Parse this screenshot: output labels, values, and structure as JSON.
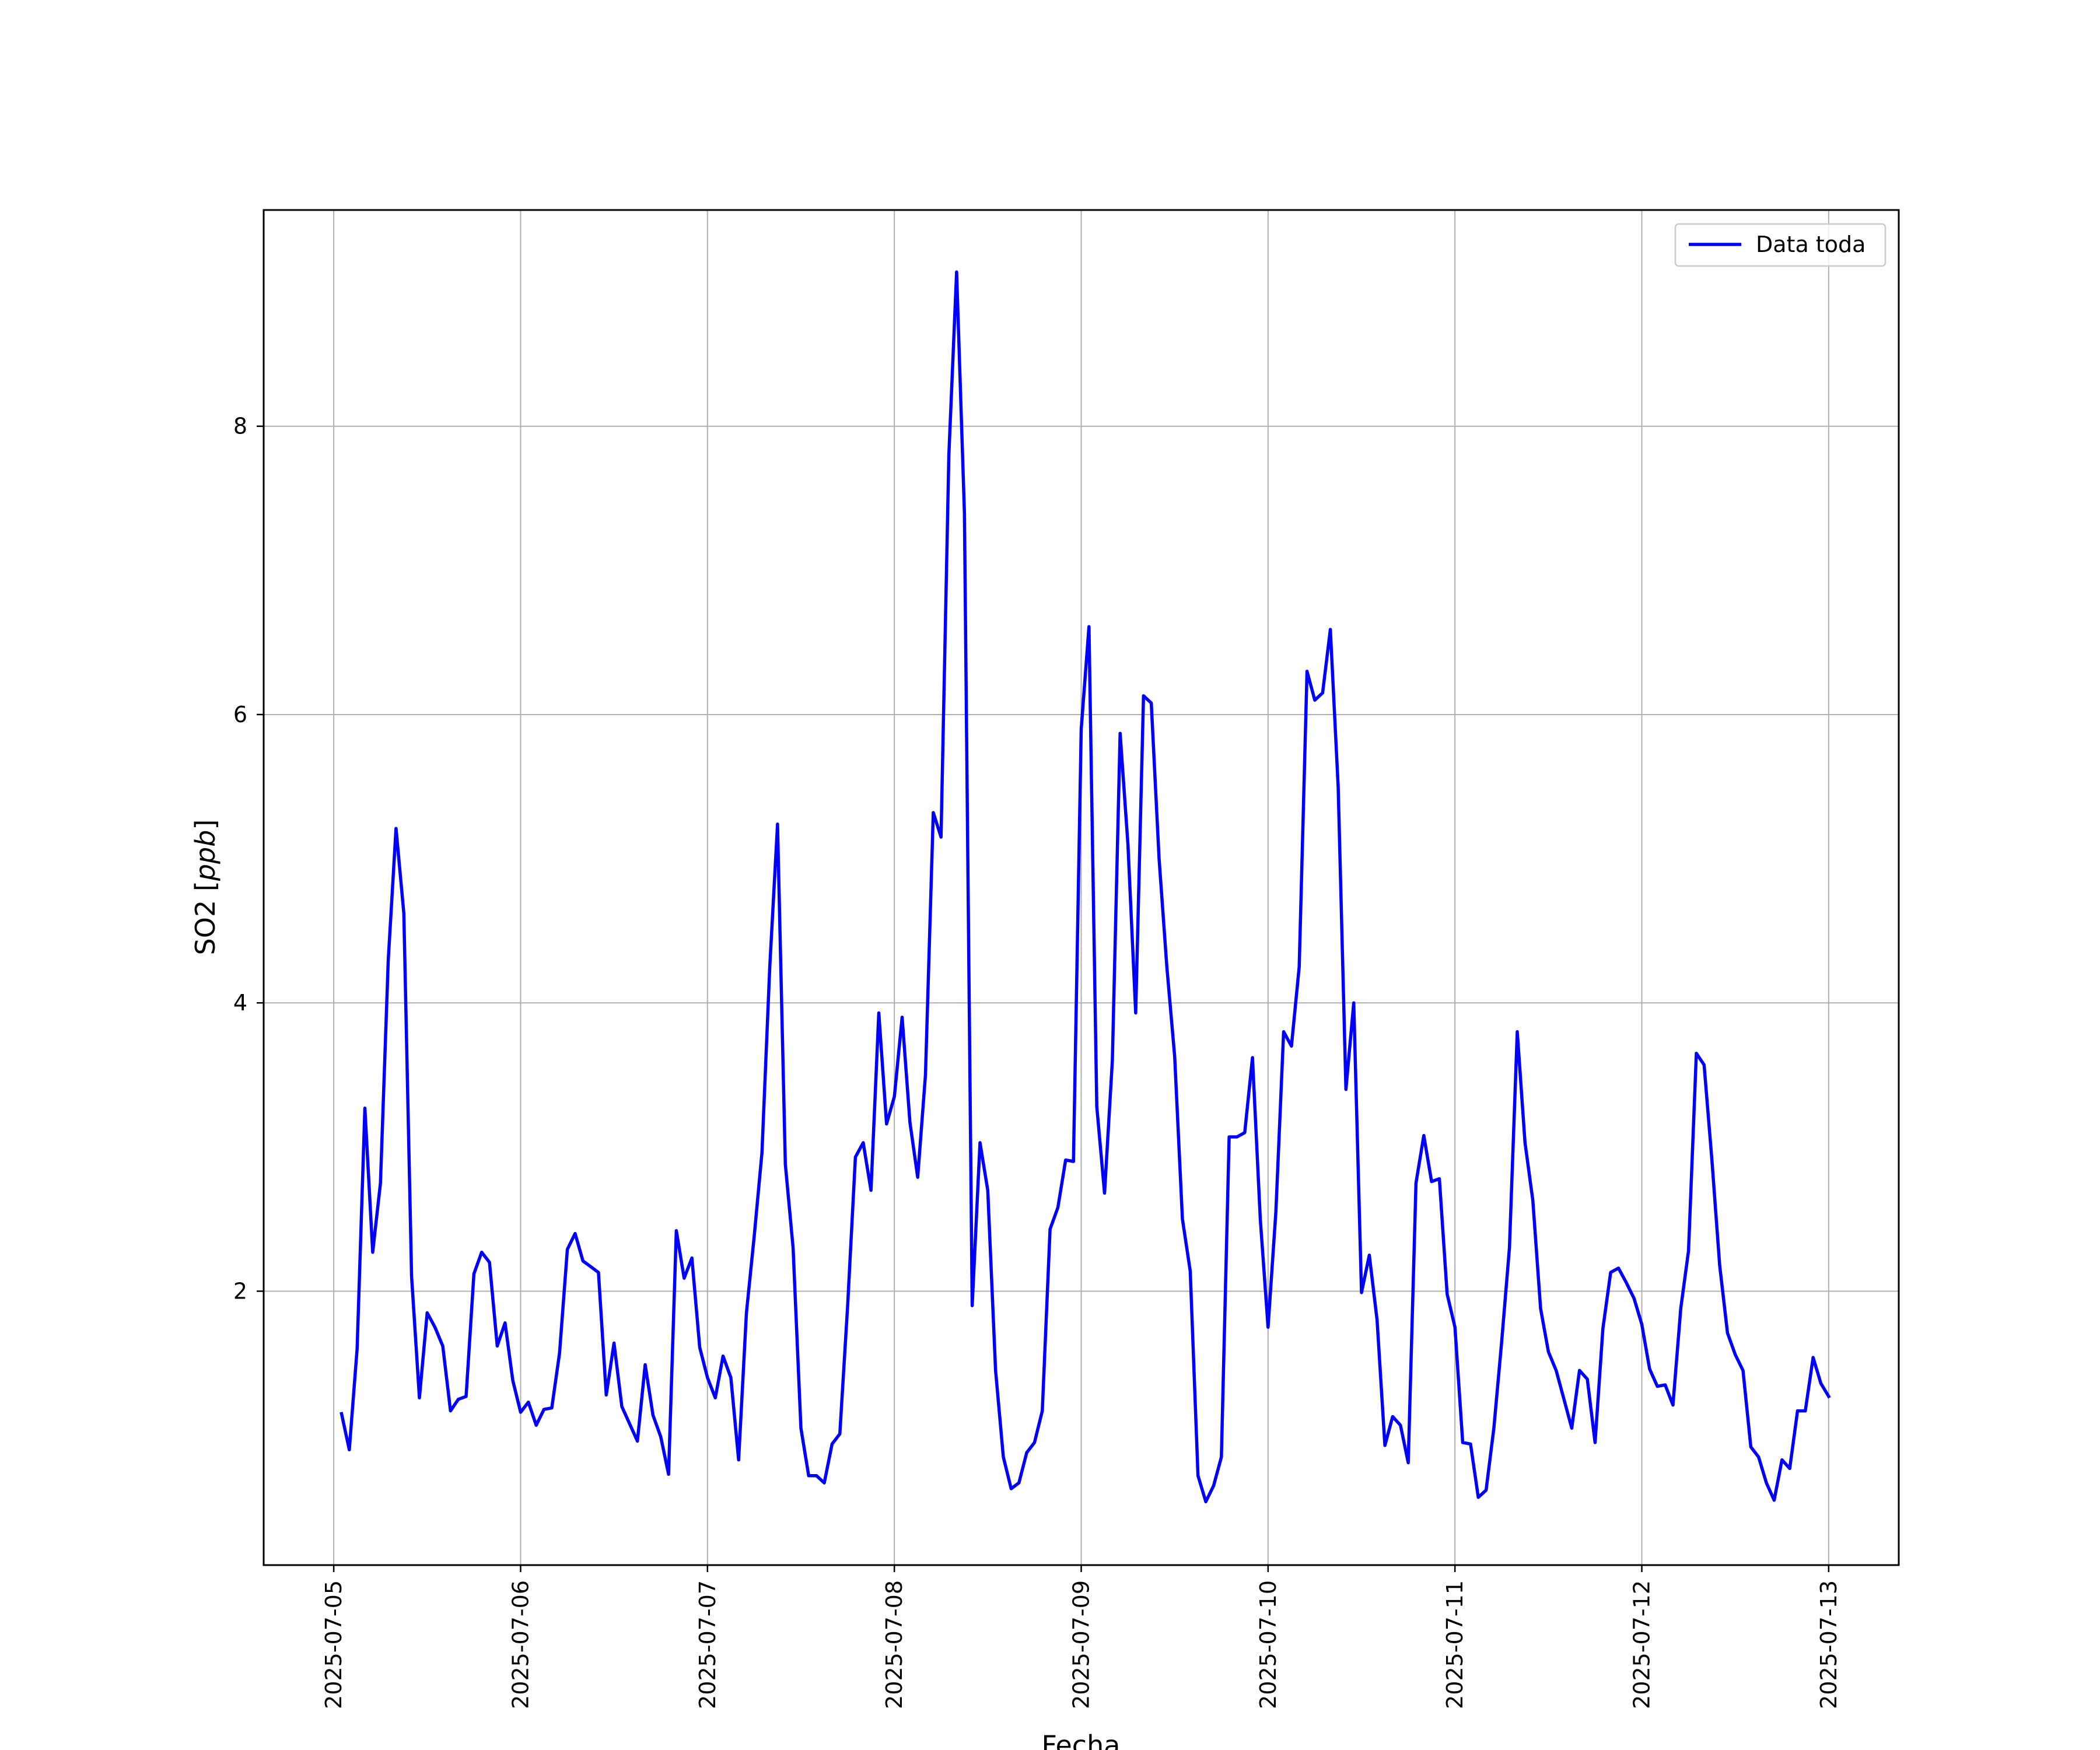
{
  "chart_data": {
    "type": "line",
    "xlabel": "Fecha",
    "ylabel": "SO2 [ppb]",
    "ylabel_plain": "SO2 [",
    "ylabel_unit": "ppb",
    "ylabel_close": "]",
    "x_ticks": [
      "2025-07-05",
      "2025-07-06",
      "2025-07-07",
      "2025-07-08",
      "2025-07-09",
      "2025-07-10",
      "2025-07-11",
      "2025-07-12",
      "2025-07-13"
    ],
    "y_ticks": [
      "2",
      "4",
      "6",
      "8"
    ],
    "xlim": [
      "2025-07-04 15:00",
      "2025-07-13 09:00"
    ],
    "ylim": [
      0.1,
      9.5
    ],
    "grid": true,
    "legend_position": "top-right",
    "series": [
      {
        "name": "Data toda",
        "color": "#0000ff",
        "x_unit": "timestamp",
        "points": [
          [
            "2025-07-05 01:00",
            1.15
          ],
          [
            "2025-07-05 02:00",
            0.9
          ],
          [
            "2025-07-05 03:00",
            1.6
          ],
          [
            "2025-07-05 04:00",
            3.27
          ],
          [
            "2025-07-05 05:00",
            2.27
          ],
          [
            "2025-07-05 06:00",
            2.75
          ],
          [
            "2025-07-05 07:00",
            4.3
          ],
          [
            "2025-07-05 08:00",
            5.21
          ],
          [
            "2025-07-05 09:00",
            4.62
          ],
          [
            "2025-07-05 10:00",
            2.1
          ],
          [
            "2025-07-05 11:00",
            1.26
          ],
          [
            "2025-07-05 12:00",
            1.85
          ],
          [
            "2025-07-05 13:00",
            1.75
          ],
          [
            "2025-07-05 14:00",
            1.62
          ],
          [
            "2025-07-05 15:00",
            1.17
          ],
          [
            "2025-07-05 16:00",
            1.25
          ],
          [
            "2025-07-05 17:00",
            1.27
          ],
          [
            "2025-07-05 18:00",
            2.12
          ],
          [
            "2025-07-05 19:00",
            2.27
          ],
          [
            "2025-07-05 20:00",
            2.2
          ],
          [
            "2025-07-05 21:00",
            1.62
          ],
          [
            "2025-07-05 22:00",
            1.78
          ],
          [
            "2025-07-05 23:00",
            1.38
          ],
          [
            "2025-07-06 00:00",
            1.16
          ],
          [
            "2025-07-06 01:00",
            1.23
          ],
          [
            "2025-07-06 02:00",
            1.07
          ],
          [
            "2025-07-06 03:00",
            1.18
          ],
          [
            "2025-07-06 04:00",
            1.19
          ],
          [
            "2025-07-06 05:00",
            1.57
          ],
          [
            "2025-07-06 06:00",
            2.29
          ],
          [
            "2025-07-06 07:00",
            2.4
          ],
          [
            "2025-07-06 08:00",
            2.21
          ],
          [
            "2025-07-06 09:00",
            2.17
          ],
          [
            "2025-07-06 10:00",
            2.13
          ],
          [
            "2025-07-06 11:00",
            1.28
          ],
          [
            "2025-07-06 12:00",
            1.64
          ],
          [
            "2025-07-06 13:00",
            1.2
          ],
          [
            "2025-07-06 14:00",
            1.08
          ],
          [
            "2025-07-06 15:00",
            0.96
          ],
          [
            "2025-07-06 16:00",
            1.49
          ],
          [
            "2025-07-06 17:00",
            1.14
          ],
          [
            "2025-07-06 18:00",
            0.99
          ],
          [
            "2025-07-06 19:00",
            0.73
          ],
          [
            "2025-07-06 20:00",
            2.42
          ],
          [
            "2025-07-06 21:00",
            2.09
          ],
          [
            "2025-07-06 22:00",
            2.23
          ],
          [
            "2025-07-06 23:00",
            1.61
          ],
          [
            "2025-07-07 00:00",
            1.4
          ],
          [
            "2025-07-07 01:00",
            1.26
          ],
          [
            "2025-07-07 02:00",
            1.55
          ],
          [
            "2025-07-07 03:00",
            1.4
          ],
          [
            "2025-07-07 04:00",
            0.83
          ],
          [
            "2025-07-07 05:00",
            1.85
          ],
          [
            "2025-07-07 06:00",
            2.38
          ],
          [
            "2025-07-07 07:00",
            2.96
          ],
          [
            "2025-07-07 08:00",
            4.25
          ],
          [
            "2025-07-07 09:00",
            5.24
          ],
          [
            "2025-07-07 10:00",
            2.88
          ],
          [
            "2025-07-07 11:00",
            2.3
          ],
          [
            "2025-07-07 12:00",
            1.05
          ],
          [
            "2025-07-07 13:00",
            0.72
          ],
          [
            "2025-07-07 14:00",
            0.72
          ],
          [
            "2025-07-07 15:00",
            0.67
          ],
          [
            "2025-07-07 16:00",
            0.94
          ],
          [
            "2025-07-07 17:00",
            1.01
          ],
          [
            "2025-07-07 18:00",
            1.9
          ],
          [
            "2025-07-07 19:00",
            2.93
          ],
          [
            "2025-07-07 20:00",
            3.03
          ],
          [
            "2025-07-07 21:00",
            2.7
          ],
          [
            "2025-07-07 22:00",
            3.93
          ],
          [
            "2025-07-07 23:00",
            3.16
          ],
          [
            "2025-07-08 00:00",
            3.35
          ],
          [
            "2025-07-08 01:00",
            3.9
          ],
          [
            "2025-07-08 02:00",
            3.17
          ],
          [
            "2025-07-08 03:00",
            2.79
          ],
          [
            "2025-07-08 04:00",
            3.5
          ],
          [
            "2025-07-08 05:00",
            5.32
          ],
          [
            "2025-07-08 06:00",
            5.15
          ],
          [
            "2025-07-08 07:00",
            7.8
          ],
          [
            "2025-07-08 08:00",
            9.07
          ],
          [
            "2025-07-08 09:00",
            7.4
          ],
          [
            "2025-07-08 10:00",
            1.9
          ],
          [
            "2025-07-08 11:00",
            3.03
          ],
          [
            "2025-07-08 12:00",
            2.7
          ],
          [
            "2025-07-08 13:00",
            1.45
          ],
          [
            "2025-07-08 14:00",
            0.85
          ],
          [
            "2025-07-08 15:00",
            0.63
          ],
          [
            "2025-07-08 16:00",
            0.67
          ],
          [
            "2025-07-08 17:00",
            0.88
          ],
          [
            "2025-07-08 18:00",
            0.95
          ],
          [
            "2025-07-08 19:00",
            1.17
          ],
          [
            "2025-07-08 20:00",
            2.43
          ],
          [
            "2025-07-08 21:00",
            2.58
          ],
          [
            "2025-07-08 22:00",
            2.91
          ],
          [
            "2025-07-08 23:00",
            2.9
          ],
          [
            "2025-07-09 00:00",
            5.9
          ],
          [
            "2025-07-09 01:00",
            6.61
          ],
          [
            "2025-07-09 02:00",
            3.28
          ],
          [
            "2025-07-09 03:00",
            2.68
          ],
          [
            "2025-07-09 04:00",
            3.6
          ],
          [
            "2025-07-09 05:00",
            5.87
          ],
          [
            "2025-07-09 06:00",
            5.1
          ],
          [
            "2025-07-09 07:00",
            3.93
          ],
          [
            "2025-07-09 08:00",
            6.13
          ],
          [
            "2025-07-09 09:00",
            6.08
          ],
          [
            "2025-07-09 10:00",
            5.0
          ],
          [
            "2025-07-09 11:00",
            4.25
          ],
          [
            "2025-07-09 12:00",
            3.63
          ],
          [
            "2025-07-09 13:00",
            2.5
          ],
          [
            "2025-07-09 14:00",
            2.14
          ],
          [
            "2025-07-09 15:00",
            0.72
          ],
          [
            "2025-07-09 16:00",
            0.54
          ],
          [
            "2025-07-09 17:00",
            0.65
          ],
          [
            "2025-07-09 18:00",
            0.85
          ],
          [
            "2025-07-09 19:00",
            3.07
          ],
          [
            "2025-07-09 20:00",
            3.07
          ],
          [
            "2025-07-09 21:00",
            3.1
          ],
          [
            "2025-07-09 22:00",
            3.62
          ],
          [
            "2025-07-09 23:00",
            2.5
          ],
          [
            "2025-07-10 00:00",
            1.75
          ],
          [
            "2025-07-10 01:00",
            2.55
          ],
          [
            "2025-07-10 02:00",
            3.8
          ],
          [
            "2025-07-10 03:00",
            3.7
          ],
          [
            "2025-07-10 04:00",
            4.25
          ],
          [
            "2025-07-10 05:00",
            6.3
          ],
          [
            "2025-07-10 06:00",
            6.1
          ],
          [
            "2025-07-10 07:00",
            6.15
          ],
          [
            "2025-07-10 08:00",
            6.59
          ],
          [
            "2025-07-10 09:00",
            5.5
          ],
          [
            "2025-07-10 10:00",
            3.4
          ],
          [
            "2025-07-10 11:00",
            4.0
          ],
          [
            "2025-07-10 12:00",
            1.99
          ],
          [
            "2025-07-10 13:00",
            2.25
          ],
          [
            "2025-07-10 14:00",
            1.8
          ],
          [
            "2025-07-10 15:00",
            0.93
          ],
          [
            "2025-07-10 16:00",
            1.13
          ],
          [
            "2025-07-10 17:00",
            1.07
          ],
          [
            "2025-07-10 18:00",
            0.81
          ],
          [
            "2025-07-10 19:00",
            2.75
          ],
          [
            "2025-07-10 20:00",
            3.08
          ],
          [
            "2025-07-10 21:00",
            2.76
          ],
          [
            "2025-07-10 22:00",
            2.78
          ],
          [
            "2025-07-10 23:00",
            1.98
          ],
          [
            "2025-07-11 00:00",
            1.75
          ],
          [
            "2025-07-11 01:00",
            0.95
          ],
          [
            "2025-07-11 02:00",
            0.94
          ],
          [
            "2025-07-11 03:00",
            0.57
          ],
          [
            "2025-07-11 04:00",
            0.62
          ],
          [
            "2025-07-11 05:00",
            1.05
          ],
          [
            "2025-07-11 06:00",
            1.65
          ],
          [
            "2025-07-11 07:00",
            2.3
          ],
          [
            "2025-07-11 08:00",
            3.8
          ],
          [
            "2025-07-11 09:00",
            3.03
          ],
          [
            "2025-07-11 10:00",
            2.63
          ],
          [
            "2025-07-11 11:00",
            1.88
          ],
          [
            "2025-07-11 12:00",
            1.58
          ],
          [
            "2025-07-11 13:00",
            1.45
          ],
          [
            "2025-07-11 14:00",
            1.25
          ],
          [
            "2025-07-11 15:00",
            1.05
          ],
          [
            "2025-07-11 16:00",
            1.45
          ],
          [
            "2025-07-11 17:00",
            1.39
          ],
          [
            "2025-07-11 18:00",
            0.95
          ],
          [
            "2025-07-11 19:00",
            1.74
          ],
          [
            "2025-07-11 20:00",
            2.13
          ],
          [
            "2025-07-11 21:00",
            2.16
          ],
          [
            "2025-07-11 22:00",
            2.06
          ],
          [
            "2025-07-11 23:00",
            1.95
          ],
          [
            "2025-07-12 00:00",
            1.77
          ],
          [
            "2025-07-12 01:00",
            1.46
          ],
          [
            "2025-07-12 02:00",
            1.34
          ],
          [
            "2025-07-12 03:00",
            1.35
          ],
          [
            "2025-07-12 04:00",
            1.21
          ],
          [
            "2025-07-12 05:00",
            1.88
          ],
          [
            "2025-07-12 06:00",
            2.28
          ],
          [
            "2025-07-12 07:00",
            3.65
          ],
          [
            "2025-07-12 08:00",
            3.57
          ],
          [
            "2025-07-12 09:00",
            2.91
          ],
          [
            "2025-07-12 10:00",
            2.18
          ],
          [
            "2025-07-12 11:00",
            1.71
          ],
          [
            "2025-07-12 12:00",
            1.56
          ],
          [
            "2025-07-12 13:00",
            1.45
          ],
          [
            "2025-07-12 14:00",
            0.92
          ],
          [
            "2025-07-12 15:00",
            0.85
          ],
          [
            "2025-07-12 16:00",
            0.67
          ],
          [
            "2025-07-12 17:00",
            0.55
          ],
          [
            "2025-07-12 18:00",
            0.83
          ],
          [
            "2025-07-12 19:00",
            0.77
          ],
          [
            "2025-07-12 20:00",
            1.17
          ],
          [
            "2025-07-12 21:00",
            1.17
          ],
          [
            "2025-07-12 22:00",
            1.54
          ],
          [
            "2025-07-12 23:00",
            1.36
          ],
          [
            "2025-07-13 00:00",
            1.27
          ]
        ]
      }
    ]
  }
}
